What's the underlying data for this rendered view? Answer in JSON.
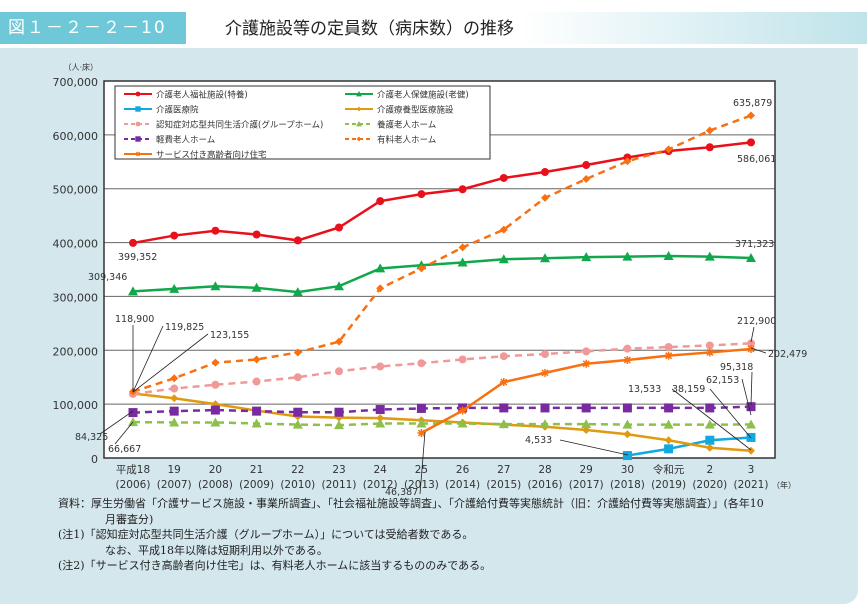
{
  "header": {
    "figure_no": "図１－２－２－10",
    "title": "介護施設等の定員数（病床数）の推移"
  },
  "chart_data": {
    "type": "line",
    "title": "介護施設等の定員数（病床数）の推移",
    "ylabel": "（人·床）",
    "xlabel": "（年）",
    "ylim": [
      0,
      700000
    ],
    "yticks": [
      "0",
      "100,000",
      "200,000",
      "300,000",
      "400,000",
      "500,000",
      "600,000",
      "700,000"
    ],
    "grid": true,
    "legend": "top",
    "categories": [
      [
        "平成18",
        "(2006)"
      ],
      [
        "19",
        "(2007)"
      ],
      [
        "20",
        "(2008)"
      ],
      [
        "21",
        "(2009)"
      ],
      [
        "22",
        "(2010)"
      ],
      [
        "23",
        "(2011)"
      ],
      [
        "24",
        "(2012)"
      ],
      [
        "25",
        "(2013)"
      ],
      [
        "26",
        "(2014)"
      ],
      [
        "27",
        "(2015)"
      ],
      [
        "28",
        "(2016)"
      ],
      [
        "29",
        "(2017)"
      ],
      [
        "30",
        "(2018)"
      ],
      [
        "令和元",
        "(2019)"
      ],
      [
        "2",
        "(2020)"
      ],
      [
        "3",
        "(2021)"
      ]
    ],
    "series": [
      {
        "name": "介護老人福祉施設(特養)",
        "color": "#e8101a",
        "dash": false,
        "marker": "circle",
        "values": [
          399352,
          413000,
          422000,
          415000,
          404000,
          428000,
          477000,
          490000,
          499000,
          520000,
          531000,
          544000,
          558000,
          570000,
          577000,
          586061
        ]
      },
      {
        "name": "介護老人保健施設(老健)",
        "color": "#10a84a",
        "dash": false,
        "marker": "triangle",
        "values": [
          309346,
          314000,
          319000,
          316000,
          308000,
          319000,
          352000,
          358000,
          363000,
          369000,
          371000,
          373000,
          374000,
          375000,
          374000,
          371323
        ]
      },
      {
        "name": "介護医療院",
        "color": "#12a8e0",
        "dash": false,
        "marker": "square",
        "values": [
          null,
          null,
          null,
          null,
          null,
          null,
          null,
          null,
          null,
          null,
          null,
          null,
          4533,
          17000,
          33000,
          38159
        ]
      },
      {
        "name": "介護療養型医療施設",
        "color": "#e09a10",
        "dash": false,
        "marker": "diamond",
        "values": [
          119825,
          111000,
          100000,
          88000,
          77000,
          75000,
          74000,
          70000,
          66000,
          62000,
          58000,
          52000,
          44000,
          33000,
          19000,
          13533
        ]
      },
      {
        "name": "認知症対応型共同生活介護(グループホーム)",
        "color": "#ef9a98",
        "dash": true,
        "marker": "circle",
        "values": [
          118900,
          129000,
          136000,
          142000,
          150000,
          161000,
          170000,
          176000,
          183000,
          189000,
          193000,
          198000,
          203000,
          206000,
          209000,
          212900
        ]
      },
      {
        "name": "養護老人ホーム",
        "color": "#8cc04a",
        "dash": true,
        "marker": "triangle",
        "values": [
          66667,
          66000,
          66000,
          64000,
          62000,
          61000,
          64000,
          64000,
          64000,
          63000,
          63000,
          63000,
          62000,
          62000,
          62000,
          62153
        ]
      },
      {
        "name": "軽費老人ホーム",
        "color": "#7a2aa0",
        "dash": true,
        "marker": "square",
        "values": [
          84325,
          87000,
          89000,
          87000,
          85000,
          85000,
          90000,
          92000,
          93000,
          93000,
          93000,
          93000,
          93000,
          93000,
          93000,
          95318
        ]
      },
      {
        "name": "有料老人ホーム",
        "color": "#f87010",
        "dash": true,
        "marker": "diamond",
        "values": [
          123155,
          148000,
          177000,
          183000,
          196000,
          216000,
          315000,
          352000,
          391000,
          424000,
          483000,
          518000,
          551000,
          573000,
          608000,
          635879
        ]
      },
      {
        "name": "サービス付き高齢者向け住宅",
        "color": "#f87010",
        "dash": false,
        "marker": "star",
        "values": [
          null,
          null,
          null,
          null,
          null,
          null,
          null,
          46387,
          88000,
          141000,
          158000,
          175000,
          182000,
          190000,
          196000,
          202479
        ]
      }
    ],
    "annotations": [
      "399,352",
      "309,346",
      "118,900",
      "119,825",
      "123,155",
      "84,325",
      "66,667",
      "46,387",
      "4,533",
      "13,533",
      "38,159",
      "62,153",
      "95,318",
      "212,900",
      "202,479",
      "371,323",
      "586,061",
      "635,879"
    ]
  },
  "notes": {
    "source": "資料：厚生労働省「介護サービス施設・事業所調査」、「社会福祉施設等調査」、「介護給付費等実態統計（旧：介護給付費等実態調査）」(各年10",
    "source2": "月審査分)",
    "note1": "(注1)「認知症対応型共同生活介護（グループホーム）」については受給者数である。",
    "note1b": "なお、平成18年以降は短期利用以外である。",
    "note2": "(注2)「サービス付き高齢者向け住宅」は、有料老人ホームに該当するもののみである。"
  }
}
